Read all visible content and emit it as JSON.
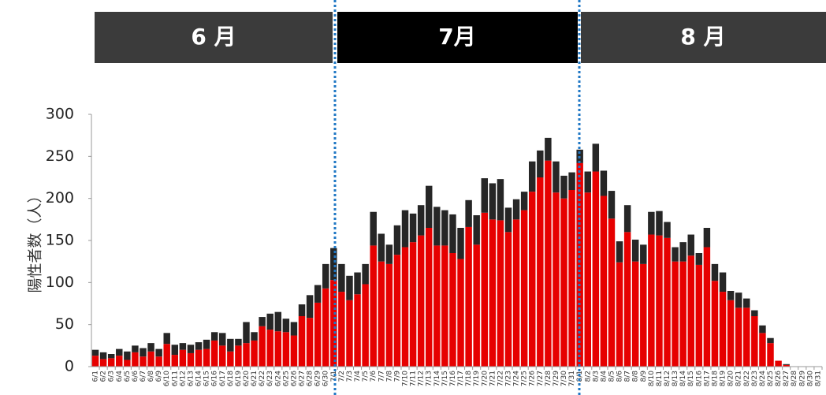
{
  "headers": [
    "6 月",
    "7月",
    "8 月"
  ],
  "chart_data": {
    "type": "stacked_bar",
    "y_label": "陽性者数（人）",
    "categories": [
      "6/1",
      "6/2",
      "6/3",
      "6/4",
      "6/5",
      "6/6",
      "6/7",
      "6/8",
      "6/9",
      "6/10",
      "6/11",
      "6/12",
      "6/13",
      "6/14",
      "6/15",
      "6/16",
      "6/17",
      "6/18",
      "6/19",
      "6/20",
      "6/21",
      "6/22",
      "6/23",
      "6/24",
      "6/25",
      "6/26",
      "6/27",
      "6/28",
      "6/29",
      "6/30",
      "7/1",
      "7/2",
      "7/3",
      "7/4",
      "7/5",
      "7/6",
      "7/7",
      "7/8",
      "7/9",
      "7/10",
      "7/11",
      "7/12",
      "7/13",
      "7/14",
      "7/15",
      "7/16",
      "7/17",
      "7/18",
      "7/19",
      "7/20",
      "7/21",
      "7/22",
      "7/23",
      "7/24",
      "7/25",
      "7/26",
      "7/27",
      "7/28",
      "7/29",
      "7/30",
      "7/31",
      "8/1",
      "8/2",
      "8/3",
      "8/4",
      "8/5",
      "8/6",
      "8/7",
      "8/8",
      "8/9",
      "8/10",
      "8/11",
      "8/12",
      "8/13",
      "8/14",
      "8/15",
      "8/16",
      "8/17",
      "8/18",
      "8/19",
      "8/20",
      "8/21",
      "8/22",
      "8/23",
      "8/24",
      "8/25",
      "8/26",
      "8/27",
      "8/28",
      "8/29",
      "8/30",
      "8/31"
    ],
    "series": [
      {
        "color": "#e60000",
        "values": [
          13,
          9,
          10,
          13,
          8,
          17,
          12,
          18,
          12,
          27,
          14,
          20,
          16,
          20,
          21,
          31,
          25,
          18,
          25,
          28,
          31,
          48,
          44,
          42,
          41,
          37,
          60,
          58,
          76,
          93,
          103,
          89,
          79,
          86,
          98,
          144,
          125,
          122,
          133,
          142,
          148,
          156,
          165,
          144,
          144,
          135,
          128,
          166,
          145,
          183,
          175,
          174,
          160,
          175,
          186,
          208,
          225,
          245,
          207,
          200,
          210,
          242,
          207,
          232,
          203,
          176,
          124,
          160,
          125,
          122,
          157,
          156,
          153,
          125,
          125,
          132,
          121,
          142,
          102,
          89,
          79,
          70,
          70,
          60,
          40,
          28,
          7,
          2,
          0,
          0,
          0,
          0
        ]
      },
      {
        "color": "#262626",
        "values": [
          7,
          8,
          5,
          8,
          10,
          8,
          10,
          10,
          9,
          13,
          12,
          8,
          10,
          9,
          11,
          10,
          15,
          15,
          8,
          25,
          10,
          11,
          19,
          23,
          16,
          16,
          14,
          27,
          21,
          29,
          38,
          33,
          29,
          26,
          24,
          40,
          33,
          23,
          35,
          44,
          34,
          36,
          50,
          46,
          42,
          46,
          37,
          32,
          35,
          41,
          43,
          49,
          29,
          24,
          22,
          36,
          32,
          27,
          37,
          27,
          21,
          16,
          25,
          33,
          30,
          33,
          25,
          32,
          26,
          23,
          27,
          29,
          19,
          17,
          23,
          25,
          14,
          23,
          20,
          23,
          11,
          18,
          11,
          7,
          9,
          6,
          0,
          1,
          0,
          0,
          0,
          0
        ]
      }
    ],
    "ylim": [
      0,
      300
    ],
    "yticks": [
      0,
      50,
      100,
      150,
      200,
      250,
      300
    ],
    "grid": false
  }
}
